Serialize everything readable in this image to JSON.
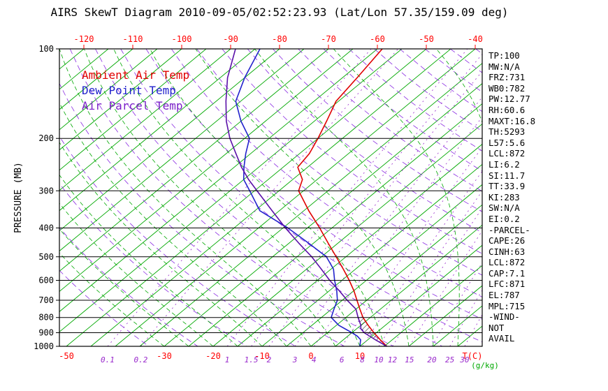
{
  "title": "AIRS SkewT Diagram 2010-09-05/02:52:23.93 (Lat/Lon 57.35/159.09 deg)",
  "colors": {
    "ambient_red": "#e00000",
    "dewpoint_blue": "#2222cc",
    "parcel_purple": "#5a10a8",
    "isotherm_green": "#00a800",
    "adiabat_violet": "#8a2be2",
    "mixing_violet": "#9928cc",
    "tick_red": "#ff0000",
    "gkg_green": "#00a800",
    "axis_black": "#000000"
  },
  "legend": {
    "items": [
      {
        "label": "Ambient Air Temp",
        "color": "#e00000"
      },
      {
        "label": "Dew Point Temp",
        "color": "#2222cc"
      },
      {
        "label": "Air Parcel Temp",
        "color": "#7a1fc8"
      }
    ]
  },
  "axes": {
    "left_label": "PRESSURE (MB)",
    "pressure_ticks": [
      100,
      200,
      300,
      400,
      500,
      600,
      700,
      800,
      900,
      1000
    ],
    "top_temp_ticks": [
      -120,
      -110,
      -100,
      -90,
      -80,
      -70,
      -60,
      -50,
      -40
    ],
    "bottom_temp_ticks": [
      -50,
      -30,
      -20,
      -10,
      0,
      10
    ],
    "bottom_temp_unit": "T(C)",
    "mixing_ratio_ticks": [
      0.1,
      0.2,
      1,
      1.5,
      2,
      3,
      4,
      6,
      8,
      10,
      12,
      15,
      20,
      25,
      30
    ],
    "mixing_ratio_unit": "(g/kg)"
  },
  "stats": [
    "TP:100",
    "MW:N/A",
    "FRZ:731",
    "WB0:782",
    "PW:12.77",
    "RH:60.6",
    "MAXT:16.8",
    "TH:5293",
    "L57:5.6",
    "LCL:872",
    "LI:6.2",
    "SI:11.7",
    "TT:33.9",
    "KI:283",
    "SW:N/A",
    "EI:0.2",
    "-PARCEL-",
    "CAPE:26",
    "CINH:63",
    "LCL:872",
    "CAP:7.1",
    "LFC:871",
    "EL:787",
    "MPL:715",
    "-WIND-",
    "NOT",
    "AVAIL"
  ],
  "chart_data": {
    "type": "line",
    "title": "AIRS SkewT Diagram 2010-09-05/02:52:23.93 (Lat/Lon 57.35/159.09 deg)",
    "xlabel": "Temperature (C), skewed 45 deg",
    "ylabel": "Pressure (MB), log scale",
    "ylim": [
      1000,
      100
    ],
    "xlim_bottom_axis": [
      -52,
      35
    ],
    "legend_position": "top-left-inside",
    "grid": "skew-t background (isotherms, adiabats, mixing-ratio lines)",
    "series": [
      {
        "name": "Ambient Air Temp",
        "color": "#e00000",
        "points": [
          [
            100,
            -59
          ],
          [
            125,
            -57
          ],
          [
            150,
            -55.5
          ],
          [
            175,
            -52.5
          ],
          [
            200,
            -50
          ],
          [
            225,
            -48
          ],
          [
            250,
            -47
          ],
          [
            275,
            -43
          ],
          [
            300,
            -41
          ],
          [
            350,
            -34
          ],
          [
            400,
            -27.5
          ],
          [
            450,
            -22
          ],
          [
            500,
            -17
          ],
          [
            550,
            -12.5
          ],
          [
            600,
            -8.5
          ],
          [
            650,
            -5
          ],
          [
            700,
            -2
          ],
          [
            750,
            0.8
          ],
          [
            800,
            3.5
          ],
          [
            850,
            6.5
          ],
          [
            900,
            9.5
          ],
          [
            950,
            12.5
          ],
          [
            1000,
            15.5
          ]
        ]
      },
      {
        "name": "Dew Point Temp",
        "color": "#2222cc",
        "points": [
          [
            100,
            -84
          ],
          [
            125,
            -80
          ],
          [
            150,
            -76
          ],
          [
            175,
            -70
          ],
          [
            200,
            -64
          ],
          [
            225,
            -61
          ],
          [
            250,
            -58
          ],
          [
            275,
            -55
          ],
          [
            300,
            -51
          ],
          [
            350,
            -44
          ],
          [
            400,
            -34
          ],
          [
            450,
            -26
          ],
          [
            500,
            -19
          ],
          [
            550,
            -14.5
          ],
          [
            600,
            -11.5
          ],
          [
            650,
            -8.5
          ],
          [
            700,
            -6
          ],
          [
            750,
            -4.5
          ],
          [
            800,
            -3
          ],
          [
            850,
            0.5
          ],
          [
            900,
            5
          ],
          [
            925,
            7
          ],
          [
            950,
            8.5
          ],
          [
            1000,
            10
          ]
        ]
      },
      {
        "name": "Air Parcel Temp",
        "color": "#5a10a8",
        "points": [
          [
            100,
            -89
          ],
          [
            125,
            -83.5
          ],
          [
            150,
            -78
          ],
          [
            175,
            -73
          ],
          [
            200,
            -68
          ],
          [
            225,
            -63
          ],
          [
            250,
            -58.5
          ],
          [
            275,
            -54
          ],
          [
            300,
            -49.5
          ],
          [
            350,
            -41.5
          ],
          [
            400,
            -34.5
          ],
          [
            450,
            -28
          ],
          [
            500,
            -22
          ],
          [
            550,
            -17
          ],
          [
            600,
            -12.5
          ],
          [
            650,
            -8
          ],
          [
            700,
            -4
          ],
          [
            750,
            0
          ],
          [
            800,
            2.5
          ],
          [
            850,
            5
          ],
          [
            872,
            5.8
          ],
          [
            900,
            7.5
          ],
          [
            950,
            11.5
          ],
          [
            1000,
            15.5
          ]
        ]
      }
    ],
    "cinh_hatch_between": [
      "Ambient Air Temp",
      "Air Parcel Temp"
    ],
    "cinh_hatch_pressure_range": [
      800,
      1000
    ],
    "background": {
      "isotherms_c": {
        "min": -125,
        "max": 45,
        "step": 5
      },
      "dry_adiabats_k": {
        "min": 240,
        "max": 450,
        "step": 10
      },
      "moist_adiabats_c": {
        "min": -30,
        "max": 40,
        "step": 5
      },
      "mixing_ratio_gkg": [
        0.1,
        0.2,
        1,
        1.5,
        2,
        3,
        4,
        6,
        8,
        10,
        12,
        15,
        20,
        25,
        30
      ]
    }
  }
}
